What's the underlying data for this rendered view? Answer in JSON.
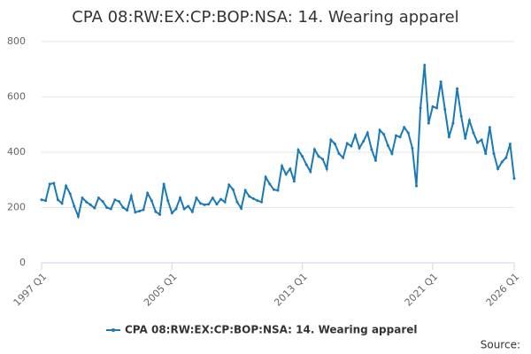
{
  "chart_data": {
    "type": "line",
    "title": "CPA 08:RW:EX:CP:BOP:NSA: 14. Wearing apparel",
    "categories": [
      "1997 Q1",
      null,
      null,
      null,
      null,
      null,
      null,
      null,
      null,
      null,
      null,
      null,
      null,
      null,
      null,
      null,
      null,
      null,
      null,
      null,
      null,
      null,
      null,
      null,
      null,
      null,
      null,
      null,
      null,
      null,
      null,
      null,
      "2005 Q1",
      null,
      null,
      null,
      null,
      null,
      null,
      null,
      null,
      null,
      null,
      null,
      null,
      null,
      null,
      null,
      null,
      null,
      null,
      null,
      null,
      null,
      null,
      null,
      null,
      null,
      null,
      null,
      null,
      null,
      null,
      null,
      "2013 Q1",
      null,
      null,
      null,
      null,
      null,
      null,
      null,
      null,
      null,
      null,
      null,
      null,
      null,
      null,
      null,
      null,
      null,
      null,
      null,
      null,
      null,
      null,
      null,
      null,
      null,
      null,
      null,
      null,
      null,
      null,
      null,
      "2021 Q1",
      null,
      null,
      null,
      null,
      null,
      null,
      null,
      null,
      null,
      null,
      null,
      null,
      null,
      null,
      null,
      null,
      null,
      null,
      null,
      "2026 Q1"
    ],
    "series": [
      {
        "name": "CPA 08:RW:EX:CP:BOP:NSA: 14. Wearing apparel",
        "color": "#1a7ab8",
        "values": [
          228,
          225,
          285,
          288,
          228,
          215,
          278,
          250,
          205,
          168,
          235,
          220,
          210,
          198,
          235,
          222,
          200,
          195,
          228,
          222,
          200,
          190,
          242,
          183,
          187,
          192,
          252,
          225,
          185,
          175,
          285,
          225,
          180,
          195,
          235,
          195,
          205,
          185,
          235,
          215,
          210,
          212,
          235,
          212,
          230,
          220,
          282,
          265,
          220,
          197,
          262,
          240,
          232,
          225,
          220,
          310,
          285,
          265,
          262,
          350,
          320,
          340,
          295,
          408,
          385,
          355,
          330,
          410,
          385,
          375,
          340,
          445,
          430,
          395,
          380,
          432,
          422,
          462,
          415,
          440,
          470,
          410,
          370,
          480,
          465,
          425,
          395,
          460,
          455,
          490,
          470,
          415,
          278,
          560,
          715,
          505,
          565,
          560,
          655,
          555,
          455,
          505,
          630,
          530,
          450,
          515,
          470,
          435,
          445,
          395,
          490,
          395,
          340,
          365,
          380,
          430,
          305
        ]
      }
    ],
    "ylim": [
      0,
      800
    ],
    "yticks": [
      0,
      200,
      400,
      600,
      800
    ],
    "grid": true,
    "source": "Source:"
  }
}
